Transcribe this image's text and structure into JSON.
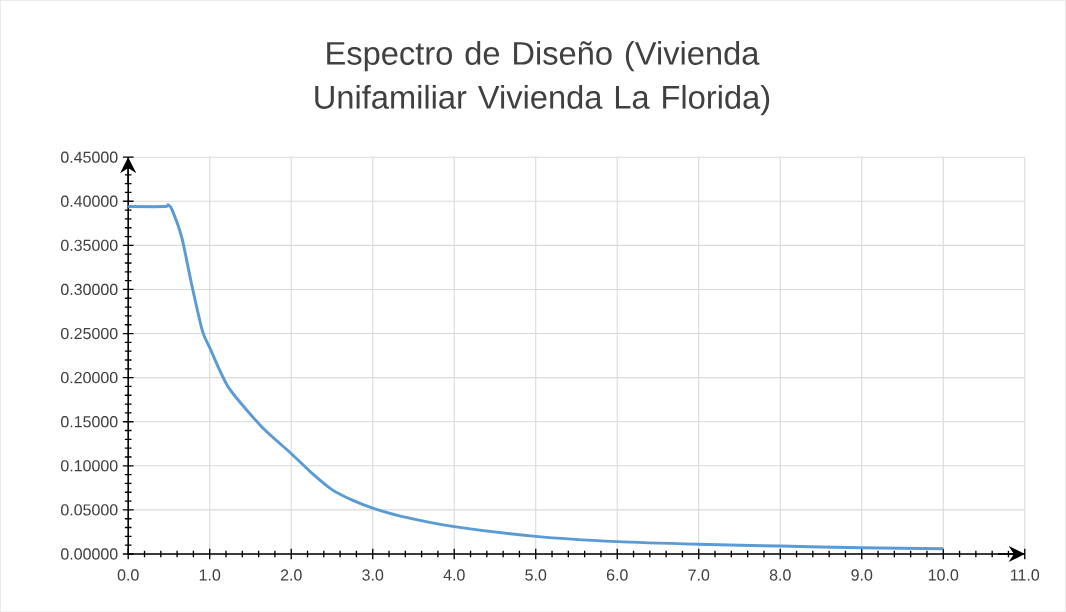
{
  "chart_data": {
    "type": "line",
    "title": "Espectro de Diseño (Vivienda Unifamiliar Vivienda La Florida)",
    "x": [
      0,
      0.45,
      0.49,
      0.54,
      0.66,
      0.78,
      0.91,
      1.0,
      1.23,
      1.64,
      2.0,
      2.25,
      2.5,
      2.75,
      3.0,
      3.34,
      4.0,
      5.0,
      6.0,
      7.0,
      8.0,
      9.0,
      10.0
    ],
    "series": [
      {
        "color": "#5b9bd5",
        "values": [
          0.394,
          0.394,
          0.396,
          0.39,
          0.358,
          0.305,
          0.253,
          0.234,
          0.189,
          0.144,
          0.114,
          0.092,
          0.073,
          0.061,
          0.052,
          0.043,
          0.031,
          0.02,
          0.014,
          0.011,
          0.009,
          0.007,
          0.006
        ]
      }
    ],
    "xlim": [
      0,
      11
    ],
    "ylim": [
      0,
      0.45
    ],
    "xticks": [
      {
        "value": 0,
        "label": "0.0"
      },
      {
        "value": 1,
        "label": "1.0"
      },
      {
        "value": 2,
        "label": "2.0"
      },
      {
        "value": 3,
        "label": "3.0"
      },
      {
        "value": 4,
        "label": "4.0"
      },
      {
        "value": 5,
        "label": "5.0"
      },
      {
        "value": 6,
        "label": "6.0"
      },
      {
        "value": 7,
        "label": "7.0"
      },
      {
        "value": 8,
        "label": "8.0"
      },
      {
        "value": 9,
        "label": "9.0"
      },
      {
        "value": 10,
        "label": "10.0"
      },
      {
        "value": 11,
        "label": "11.0"
      }
    ],
    "yticks": [
      {
        "value": 0,
        "label": "0.00000"
      },
      {
        "value": 0.05,
        "label": "0.05000"
      },
      {
        "value": 0.1,
        "label": "0.10000"
      },
      {
        "value": 0.15,
        "label": "0.15000"
      },
      {
        "value": 0.2,
        "label": "0.20000"
      },
      {
        "value": 0.25,
        "label": "0.25000"
      },
      {
        "value": 0.3,
        "label": "0.30000"
      },
      {
        "value": 0.35,
        "label": "0.35000"
      },
      {
        "value": 0.4,
        "label": "0.40000"
      },
      {
        "value": 0.45,
        "label": "0.45000"
      }
    ],
    "grid": true,
    "marker": "none",
    "line_style": "solid"
  }
}
